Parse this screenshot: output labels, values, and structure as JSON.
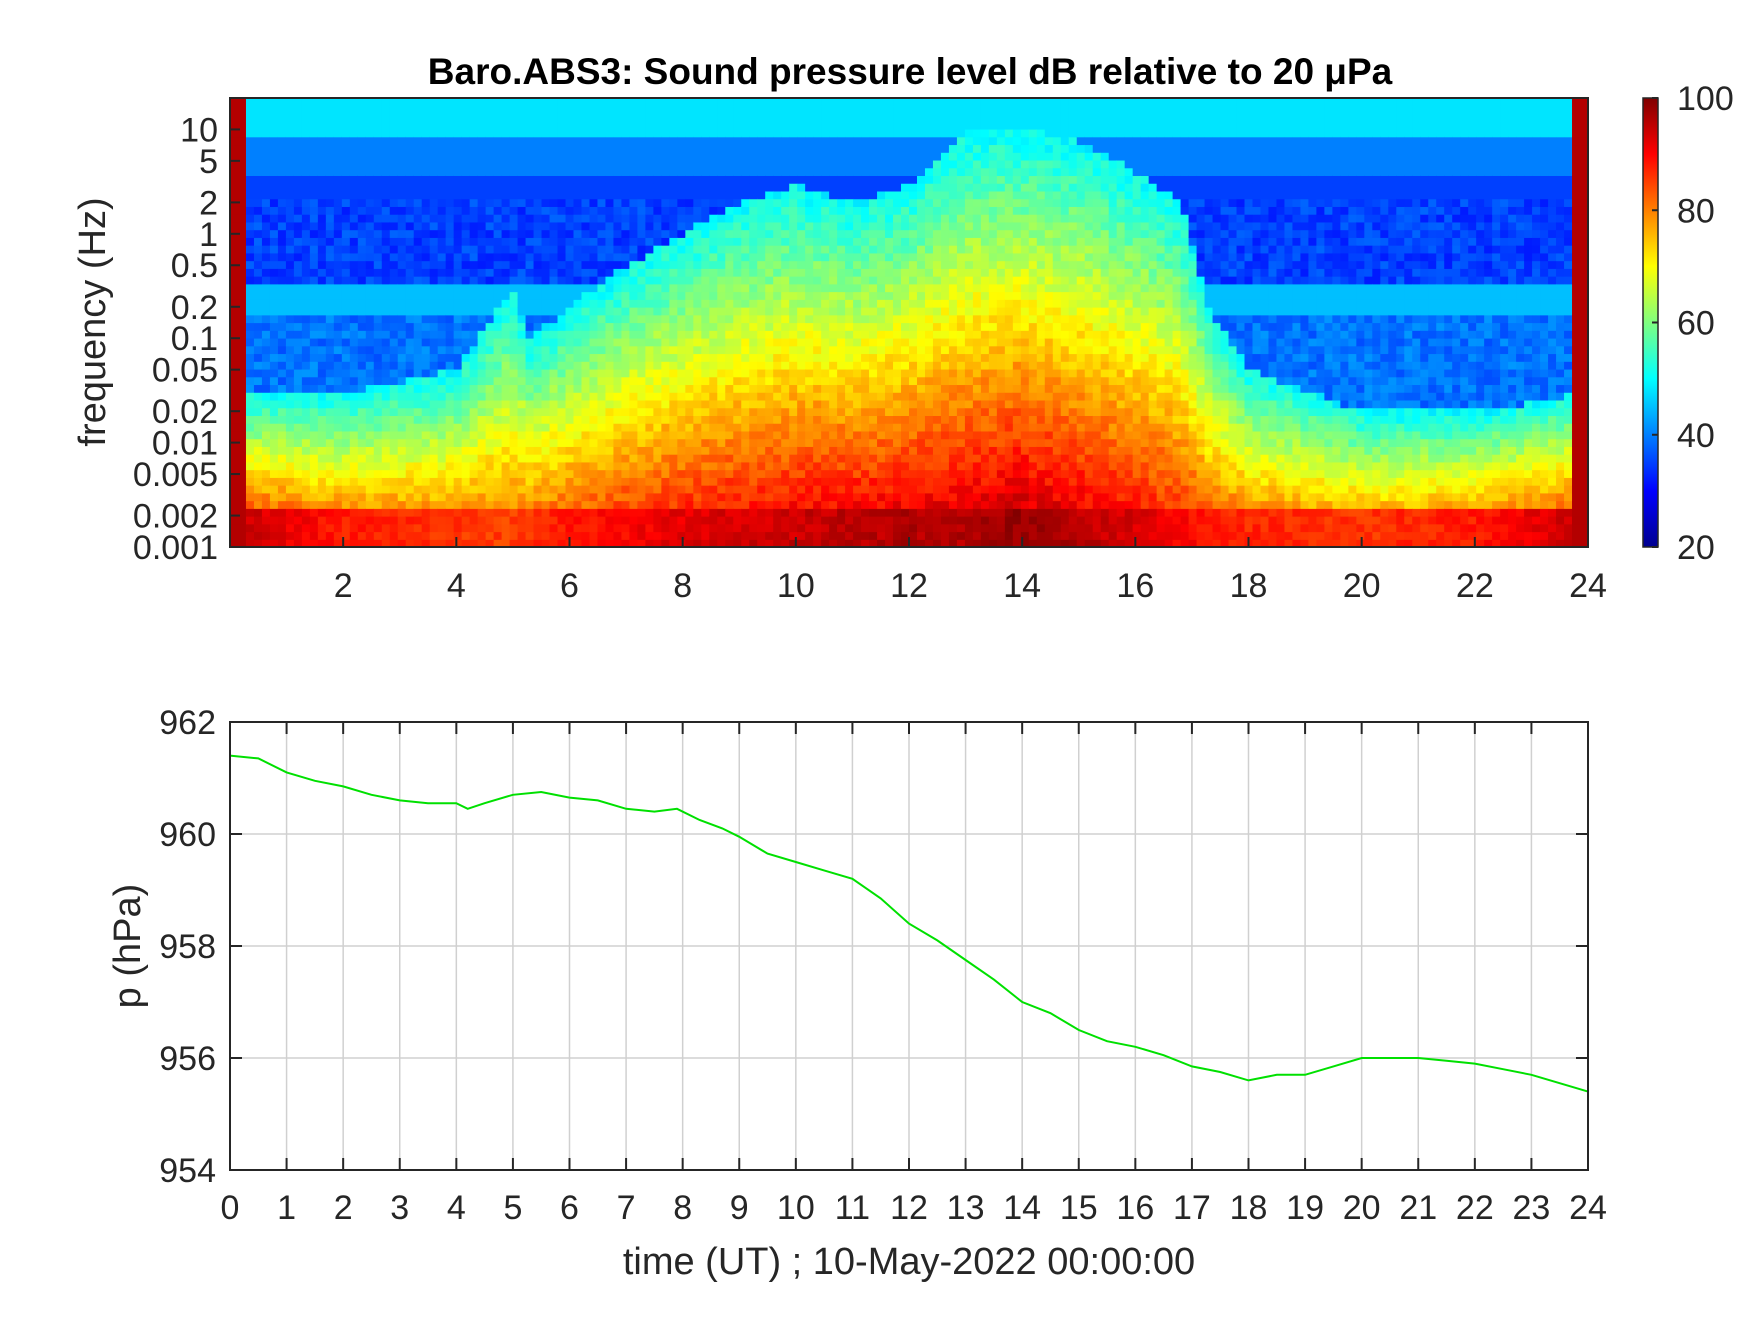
{
  "chart_data": [
    {
      "type": "heatmap",
      "title": "Baro.ABS3: Sound pressure level dB relative to 20 μPa",
      "xlabel": "",
      "ylabel": "frequency (Hz)",
      "x_ticks": [
        2,
        4,
        6,
        8,
        10,
        12,
        14,
        16,
        18,
        20,
        22,
        24
      ],
      "x_tick_labels": [
        "2",
        "4",
        "6",
        "8",
        "10",
        "12",
        "14",
        "16",
        "18",
        "20",
        "22",
        "24"
      ],
      "xlim": [
        0,
        24
      ],
      "y_scale": "log",
      "ylim": [
        0.001,
        20
      ],
      "y_ticks": [
        0.001,
        0.002,
        0.005,
        0.01,
        0.02,
        0.05,
        0.1,
        0.2,
        0.5,
        1,
        2,
        5,
        10
      ],
      "y_tick_labels": [
        "0.001",
        "0.002",
        "0.005",
        "0.01",
        "0.02",
        "0.05",
        "0.1",
        "0.2",
        "0.5",
        "1",
        "2",
        "5",
        "10"
      ],
      "colorbar": {
        "colormap": "jet",
        "range": [
          20,
          100
        ],
        "ticks": [
          20,
          40,
          60,
          80,
          100
        ],
        "tick_labels": [
          "20",
          "40",
          "60",
          "80",
          "100"
        ],
        "placement": "right"
      },
      "activity_profile": {
        "description_hours": [
          0,
          2,
          4,
          5,
          5.3,
          6,
          7,
          8,
          9,
          10,
          11,
          12,
          13,
          14,
          15,
          16,
          16.8,
          17.3,
          18,
          20,
          22,
          24
        ],
        "top_frequency_reach_hz": [
          0.03,
          0.03,
          0.05,
          0.3,
          0.1,
          0.2,
          0.5,
          1,
          2,
          3,
          2,
          3,
          10,
          10,
          8,
          4,
          2,
          0.2,
          0.05,
          0.02,
          0.02,
          0.03
        ],
        "peak_level_db": [
          95,
          88,
          86,
          85,
          86,
          88,
          90,
          92,
          93,
          94,
          95,
          96,
          96,
          98,
          95,
          93,
          90,
          88,
          87,
          86,
          88,
          95
        ]
      }
    },
    {
      "type": "line",
      "title": "",
      "xlabel": "time (UT) ; 10-May-2022 00:00:00",
      "ylabel": "p (hPa)",
      "xlim": [
        0,
        24
      ],
      "ylim": [
        954,
        962
      ],
      "x_ticks": [
        0,
        1,
        2,
        3,
        4,
        5,
        6,
        7,
        8,
        9,
        10,
        11,
        12,
        13,
        14,
        15,
        16,
        17,
        18,
        19,
        20,
        21,
        22,
        23,
        24
      ],
      "x_tick_labels": [
        "0",
        "1",
        "2",
        "3",
        "4",
        "5",
        "6",
        "7",
        "8",
        "9",
        "10",
        "11",
        "12",
        "13",
        "14",
        "15",
        "16",
        "17",
        "18",
        "19",
        "20",
        "21",
        "22",
        "23",
        "24"
      ],
      "y_ticks": [
        954,
        956,
        958,
        960,
        962
      ],
      "y_tick_labels": [
        "954",
        "956",
        "958",
        "960",
        "962"
      ],
      "grid": true,
      "series": [
        {
          "color": "#00e000",
          "x": [
            0,
            0.5,
            1,
            1.5,
            2,
            2.5,
            3,
            3.5,
            4,
            4.2,
            4.5,
            5,
            5.5,
            6,
            6.5,
            7,
            7.5,
            7.9,
            8.3,
            8.7,
            9,
            9.5,
            10,
            10.5,
            11,
            11.5,
            12,
            12.5,
            13,
            13.5,
            14,
            14.5,
            15,
            15.5,
            16,
            16.5,
            17,
            17.5,
            18,
            18.5,
            19,
            19.5,
            20,
            20.5,
            21,
            21.5,
            22,
            22.5,
            23,
            23.5,
            24
          ],
          "y": [
            961.4,
            961.35,
            961.1,
            960.95,
            960.85,
            960.7,
            960.6,
            960.55,
            960.55,
            960.45,
            960.55,
            960.7,
            960.75,
            960.65,
            960.6,
            960.45,
            960.4,
            960.45,
            960.25,
            960.1,
            959.95,
            959.65,
            959.5,
            959.35,
            959.2,
            958.85,
            958.4,
            958.1,
            957.75,
            957.4,
            957.0,
            956.8,
            956.5,
            956.3,
            956.2,
            956.05,
            955.85,
            955.75,
            955.6,
            955.7,
            955.7,
            955.85,
            956.0,
            956.0,
            956.0,
            955.95,
            955.9,
            955.8,
            955.7,
            955.55,
            955.4
          ]
        }
      ]
    }
  ]
}
